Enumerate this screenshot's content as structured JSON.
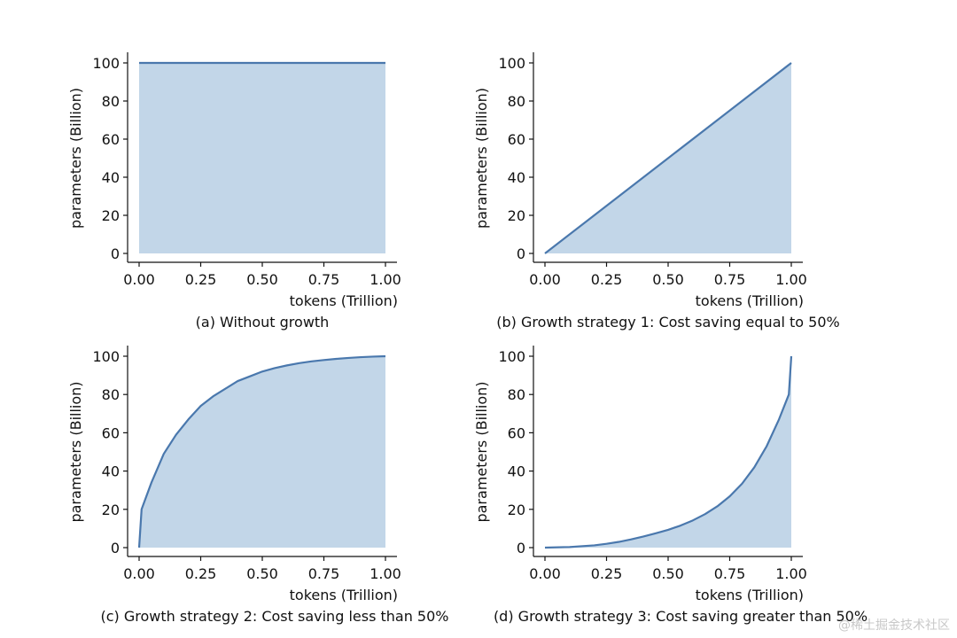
{
  "colors": {
    "line": "#4a78ad",
    "fill": "#c2d6e8",
    "axis": "#111111",
    "background": "#ffffff"
  },
  "watermark": "@稀土掘金技术社区",
  "chart_data": [
    {
      "type": "area",
      "caption": "(a) Without growth",
      "xlabel": "tokens (Trillion)",
      "ylabel": "parameters (Billion)",
      "xlim": [
        0,
        1
      ],
      "ylim": [
        0,
        100
      ],
      "xticks": [
        "0.00",
        "0.25",
        "0.50",
        "0.75",
        "1.00"
      ],
      "yticks": [
        "0",
        "20",
        "40",
        "60",
        "80",
        "100"
      ],
      "x": [
        0,
        0.25,
        0.5,
        0.75,
        1.0
      ],
      "y": [
        100,
        100,
        100,
        100,
        100
      ]
    },
    {
      "type": "area",
      "caption": "(b) Growth strategy 1: Cost saving equal to 50%",
      "xlabel": "tokens (Trillion)",
      "ylabel": "parameters (Billion)",
      "xlim": [
        0,
        1
      ],
      "ylim": [
        0,
        100
      ],
      "xticks": [
        "0.00",
        "0.25",
        "0.50",
        "0.75",
        "1.00"
      ],
      "yticks": [
        "0",
        "20",
        "40",
        "60",
        "80",
        "100"
      ],
      "x": [
        0,
        0.25,
        0.5,
        0.75,
        1.0
      ],
      "y": [
        0,
        25,
        50,
        75,
        100
      ]
    },
    {
      "type": "area",
      "caption": "(c) Growth strategy 2: Cost saving less than 50%",
      "xlabel": "tokens (Trillion)",
      "ylabel": "parameters (Billion)",
      "xlim": [
        0,
        1
      ],
      "ylim": [
        0,
        100
      ],
      "xticks": [
        "0.00",
        "0.25",
        "0.50",
        "0.75",
        "1.00"
      ],
      "yticks": [
        "0",
        "20",
        "40",
        "60",
        "80",
        "100"
      ],
      "x": [
        0,
        0.01,
        0.05,
        0.1,
        0.15,
        0.2,
        0.25,
        0.3,
        0.35,
        0.4,
        0.45,
        0.5,
        0.55,
        0.6,
        0.65,
        0.7,
        0.75,
        0.8,
        0.85,
        0.9,
        0.95,
        1.0
      ],
      "y": [
        0,
        20,
        34,
        49,
        59,
        67,
        74,
        79,
        83,
        87,
        89.5,
        92,
        93.8,
        95.2,
        96.4,
        97.3,
        98,
        98.6,
        99.1,
        99.5,
        99.8,
        100
      ]
    },
    {
      "type": "area",
      "caption": "(d) Growth strategy 3: Cost saving greater than 50%",
      "xlabel": "tokens (Trillion)",
      "ylabel": "parameters (Billion)",
      "xlim": [
        0,
        1
      ],
      "ylim": [
        0,
        100
      ],
      "xticks": [
        "0.00",
        "0.25",
        "0.50",
        "0.75",
        "1.00"
      ],
      "yticks": [
        "0",
        "20",
        "40",
        "60",
        "80",
        "100"
      ],
      "x": [
        0,
        0.1,
        0.2,
        0.25,
        0.3,
        0.35,
        0.4,
        0.45,
        0.5,
        0.55,
        0.6,
        0.65,
        0.7,
        0.75,
        0.8,
        0.85,
        0.9,
        0.95,
        0.99,
        1.0
      ],
      "y": [
        0,
        0.3,
        1.2,
        2,
        3,
        4.3,
        5.8,
        7.5,
        9.3,
        11.5,
        14.2,
        17.5,
        21.6,
        26.8,
        33.4,
        42,
        53,
        67,
        80,
        100
      ]
    }
  ]
}
